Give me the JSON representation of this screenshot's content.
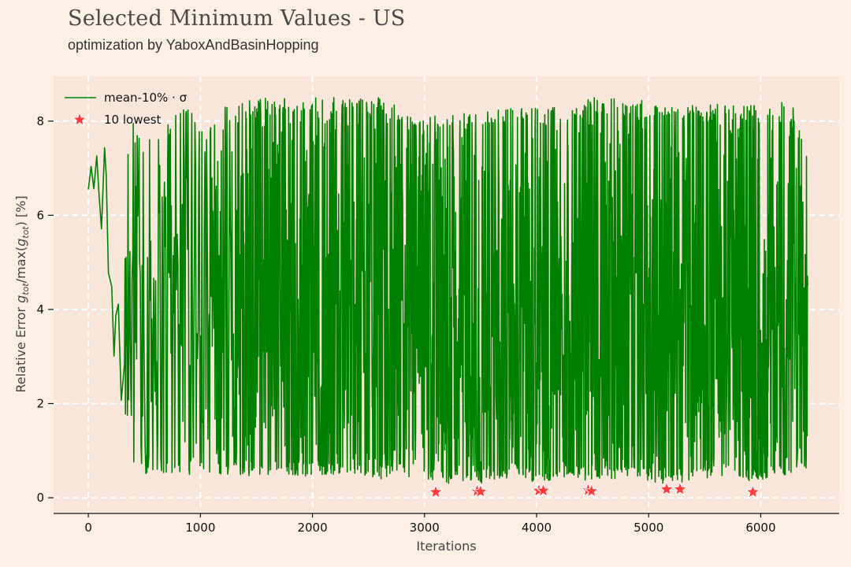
{
  "chart_data": {
    "type": "line",
    "title": "Selected Minimum Values - US",
    "subtitle": "optimization by YaboxAndBasinHopping",
    "xlabel": "Iterations",
    "ylabel": "Relative Error g_tot/max(g_tot) [%]",
    "ylabel_parts": {
      "pre": "Relative Error ",
      "g1": "g",
      "s1": "tot",
      "mid": "/max(",
      "g2": "g",
      "s2": "tot",
      "post": ") [%]"
    },
    "xlim": [
      -310,
      6700
    ],
    "ylim": [
      -0.3,
      8.95
    ],
    "xticks": [
      0,
      1000,
      2000,
      3000,
      4000,
      5000,
      6000
    ],
    "yticks": [
      0,
      2,
      4,
      6,
      8
    ],
    "grid": true,
    "legend_position": "top-left",
    "colors": {
      "line": "#008000",
      "marker": "#ff3b3b",
      "background": "#fcefe4",
      "plot_background": "#f8e6da",
      "grid": "#ffffff"
    },
    "series": [
      {
        "name": "mean-10% · σ",
        "kind": "line",
        "note": "dense oscillating series; x from 0 to about 6420 iterations, y mostly between about 0.4 and 8.5",
        "x_range": [
          0,
          6420
        ],
        "envelope": [
          [
            0,
            7.4,
            6.3
          ],
          [
            100,
            7.8,
            6.3
          ],
          [
            200,
            8.45,
            2.6
          ],
          [
            300,
            6.7,
            1.9
          ],
          [
            400,
            8.0,
            0.6
          ],
          [
            500,
            7.5,
            0.5
          ],
          [
            600,
            8.05,
            0.5
          ],
          [
            700,
            8.0,
            0.5
          ],
          [
            800,
            8.2,
            0.45
          ],
          [
            900,
            8.3,
            0.45
          ],
          [
            1000,
            8.1,
            0.5
          ],
          [
            1100,
            7.9,
            0.5
          ],
          [
            1200,
            8.45,
            0.45
          ],
          [
            1300,
            8.3,
            0.5
          ],
          [
            1500,
            8.5,
            0.45
          ],
          [
            1700,
            8.5,
            0.5
          ],
          [
            2000,
            8.5,
            0.45
          ],
          [
            2300,
            8.5,
            0.5
          ],
          [
            2600,
            8.5,
            0.4
          ],
          [
            2900,
            8.2,
            0.45
          ],
          [
            3100,
            8.2,
            0.3
          ],
          [
            3500,
            8.2,
            0.3
          ],
          [
            3800,
            8.3,
            0.45
          ],
          [
            4000,
            8.3,
            0.3
          ],
          [
            4300,
            8.3,
            0.45
          ],
          [
            4500,
            8.5,
            0.3
          ],
          [
            4800,
            8.5,
            0.45
          ],
          [
            5100,
            8.4,
            0.3
          ],
          [
            5300,
            8.3,
            0.3
          ],
          [
            5600,
            8.4,
            0.45
          ],
          [
            5900,
            8.4,
            0.3
          ],
          [
            6150,
            8.5,
            0.45
          ],
          [
            6300,
            8.3,
            0.5
          ],
          [
            6420,
            7.2,
            0.6
          ]
        ]
      },
      {
        "name": "10 lowest",
        "kind": "scatter",
        "marker": "star",
        "points": [
          [
            3100,
            0.12
          ],
          [
            3470,
            0.14
          ],
          [
            3500,
            0.13
          ],
          [
            4020,
            0.15
          ],
          [
            4060,
            0.15
          ],
          [
            4460,
            0.16
          ],
          [
            4490,
            0.14
          ],
          [
            5160,
            0.18
          ],
          [
            5280,
            0.18
          ],
          [
            5930,
            0.12
          ]
        ]
      }
    ]
  }
}
